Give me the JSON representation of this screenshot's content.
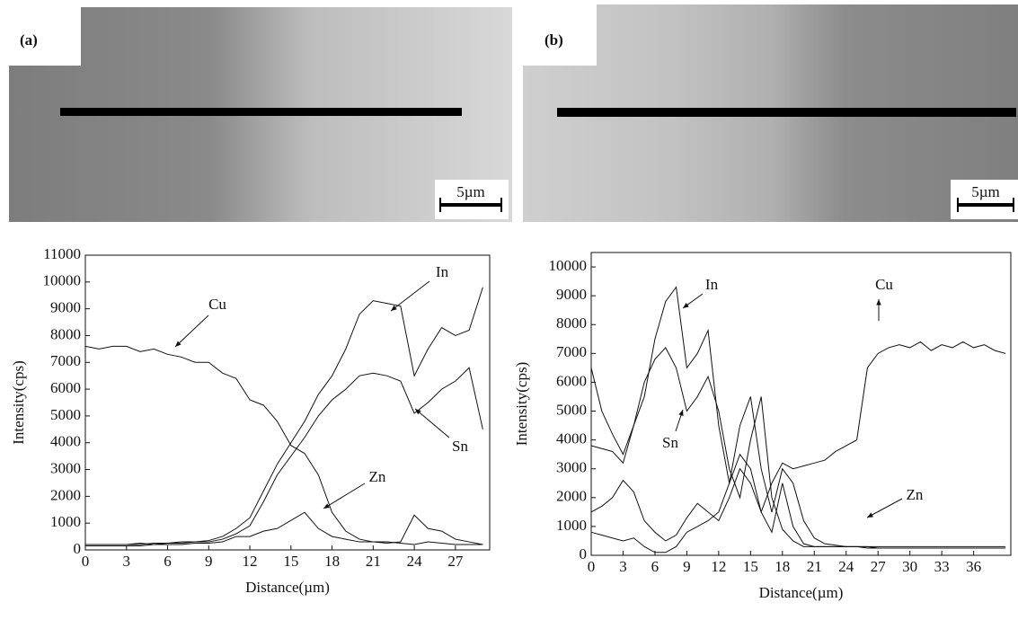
{
  "panels": [
    {
      "label": "(a)",
      "scale_bar": "5µm"
    },
    {
      "label": "(b)",
      "scale_bar": "5µm"
    }
  ],
  "chart_data": [
    {
      "type": "line",
      "x_label": "Distance(µm)",
      "y_label": "Intensity(cps)",
      "x": [
        0,
        1,
        2,
        3,
        4,
        5,
        6,
        7,
        8,
        9,
        10,
        11,
        12,
        13,
        14,
        15,
        16,
        17,
        18,
        19,
        20,
        21,
        22,
        23,
        24,
        25,
        26,
        27,
        28,
        29
      ],
      "xlim": [
        0,
        29.5
      ],
      "xticks": [
        0,
        3,
        6,
        9,
        12,
        15,
        18,
        21,
        24,
        27
      ],
      "ylim": [
        0,
        11000
      ],
      "yticks": [
        0,
        1000,
        2000,
        3000,
        4000,
        5000,
        6000,
        7000,
        8000,
        9000,
        10000,
        11000
      ],
      "series": [
        {
          "name": "Cu",
          "color": "#111111",
          "values": [
            7600,
            7500,
            7600,
            7600,
            7400,
            7500,
            7300,
            7200,
            7000,
            7000,
            6600,
            6400,
            5600,
            5400,
            4800,
            3900,
            3600,
            2800,
            1400,
            700,
            400,
            300,
            300,
            250,
            200,
            300,
            250,
            200,
            200,
            200
          ]
        },
        {
          "name": "In",
          "color": "#111111",
          "values": [
            200,
            200,
            200,
            200,
            250,
            200,
            250,
            300,
            300,
            350,
            500,
            800,
            1200,
            2200,
            3200,
            4000,
            4800,
            5800,
            6500,
            7500,
            8800,
            9300,
            9200,
            9100,
            6500,
            7500,
            8300,
            8000,
            8200,
            9800
          ]
        },
        {
          "name": "Sn",
          "color": "#111111",
          "values": [
            200,
            200,
            200,
            200,
            200,
            250,
            250,
            250,
            300,
            300,
            400,
            600,
            900,
            1800,
            2800,
            3500,
            4200,
            5000,
            5600,
            6000,
            6500,
            6600,
            6500,
            6300,
            5100,
            5500,
            6000,
            6300,
            6800,
            4500
          ]
        },
        {
          "name": "Zn",
          "color": "#111111",
          "values": [
            150,
            150,
            150,
            150,
            150,
            200,
            200,
            200,
            250,
            250,
            300,
            500,
            500,
            700,
            800,
            1100,
            1400,
            800,
            500,
            400,
            300,
            300,
            250,
            300,
            1300,
            800,
            700,
            400,
            300,
            200
          ]
        }
      ]
    },
    {
      "type": "line",
      "x_label": "Distance(µm)",
      "y_label": "Intensity(cps)",
      "x": [
        0,
        1,
        2,
        3,
        4,
        5,
        6,
        7,
        8,
        9,
        10,
        11,
        12,
        13,
        14,
        15,
        16,
        17,
        18,
        19,
        20,
        21,
        22,
        23,
        24,
        25,
        26,
        27,
        28,
        29,
        30,
        31,
        32,
        33,
        34,
        35,
        36,
        37,
        38,
        39
      ],
      "xlim": [
        0,
        39.5
      ],
      "xticks": [
        0,
        3,
        6,
        9,
        12,
        15,
        18,
        21,
        24,
        27,
        30,
        33,
        36
      ],
      "ylim": [
        0,
        10500
      ],
      "yticks": [
        0,
        1000,
        2000,
        3000,
        4000,
        5000,
        6000,
        7000,
        8000,
        9000,
        10000
      ],
      "series": [
        {
          "name": "Cu",
          "color": "#111111",
          "values": [
            1500,
            1700,
            2000,
            2600,
            2200,
            1200,
            800,
            500,
            700,
            1300,
            1800,
            1500,
            1200,
            2000,
            3000,
            2500,
            1500,
            2500,
            3200,
            3000,
            3100,
            3200,
            3300,
            3600,
            3800,
            4000,
            6500,
            7000,
            7200,
            7300,
            7200,
            7400,
            7100,
            7300,
            7200,
            7400,
            7200,
            7300,
            7100,
            7000
          ]
        },
        {
          "name": "In",
          "color": "#111111",
          "values": [
            6500,
            5000,
            4200,
            3500,
            4500,
            5500,
            7500,
            8800,
            9300,
            6500,
            7000,
            7800,
            4500,
            2500,
            3500,
            3000,
            1500,
            800,
            2500,
            1000,
            400,
            300,
            300,
            300,
            300,
            300,
            300,
            250,
            250,
            250,
            250,
            250,
            250,
            250,
            250,
            250,
            250,
            250,
            250,
            250
          ]
        },
        {
          "name": "Sn",
          "color": "#111111",
          "values": [
            3800,
            3700,
            3600,
            3200,
            4500,
            6000,
            6800,
            7200,
            6500,
            5000,
            5500,
            6200,
            5000,
            3000,
            2000,
            4000,
            5500,
            2000,
            900,
            500,
            300,
            300,
            300,
            300,
            300,
            300,
            250,
            250,
            250,
            250,
            250,
            250,
            250,
            250,
            250,
            250,
            250,
            250,
            250,
            250
          ]
        },
        {
          "name": "Zn",
          "color": "#111111",
          "values": [
            800,
            700,
            600,
            500,
            600,
            300,
            100,
            100,
            300,
            800,
            1000,
            1200,
            1500,
            2500,
            4500,
            5500,
            3000,
            1500,
            3000,
            2500,
            1200,
            600,
            400,
            350,
            300,
            300,
            300,
            300,
            300,
            300,
            300,
            300,
            300,
            300,
            300,
            300,
            300,
            300,
            300,
            300
          ]
        }
      ]
    }
  ]
}
